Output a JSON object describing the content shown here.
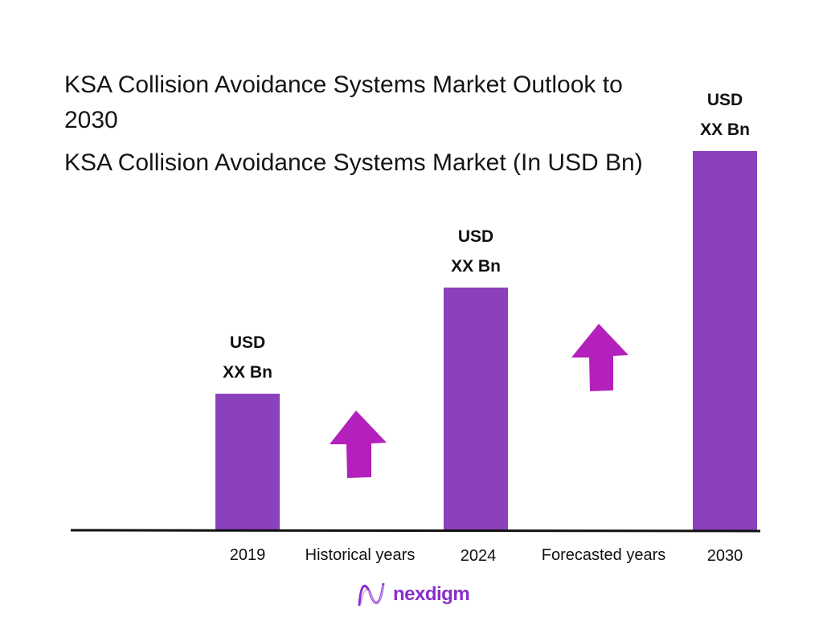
{
  "chart_data": {
    "type": "bar",
    "title": "KSA Collision Avoidance Systems Market Outlook to 2030",
    "subtitle": "KSA Collision Avoidance Systems Market (In USD Bn)",
    "categories": [
      "2019",
      "2024",
      "2030"
    ],
    "relative_values": [
      36,
      64,
      100
    ],
    "data_labels": [
      {
        "line1": "USD",
        "line2": "XX Bn"
      },
      {
        "line1": "USD",
        "line2": "XX Bn"
      },
      {
        "line1": "USD",
        "line2": "XX Bn"
      }
    ],
    "period_labels": [
      "Historical years",
      "Forecasted years"
    ],
    "annotations": [
      "up-arrow",
      "up-arrow"
    ],
    "grid": false,
    "colors": {
      "bar": "#8a41bb",
      "arrow": "#b320bb",
      "axis": "#111111"
    }
  },
  "logo": {
    "text": "nexdigm",
    "color": "#8a2fc9"
  }
}
